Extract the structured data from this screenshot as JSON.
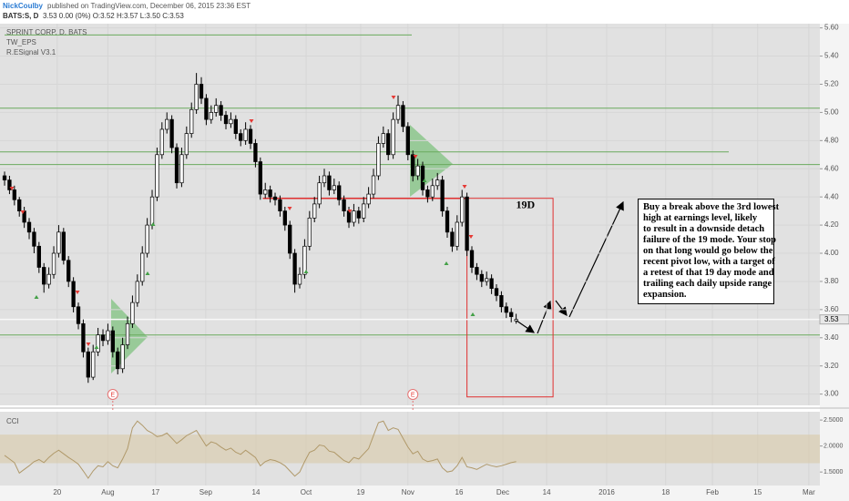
{
  "header": {
    "author": "NickCoulby",
    "published": "published on TradingView.com, December 06, 2015 23:36 EST",
    "symbol": "BATS:S, D",
    "quote": "3.53 0.00 (0%) O:3.52 H:3.57 L:3.50 C:3.53"
  },
  "annotation": {
    "label": "19D",
    "lines": [
      "Buy a break above the 3rd lowest",
      "high at earnings level, likely",
      "to result in a downside detach",
      "failure of the 19 mode. Your stop",
      "on that long would go below the",
      "recent pivot low, with a target of",
      "a retest of that 19 day mode and",
      "trailing each daily upside range",
      "expansion."
    ]
  },
  "chart_data": [
    {
      "type": "candlestick",
      "legend": [
        "SPRINT CORP, D, BATS",
        "TW_EPS",
        "R.ESignal V3.1"
      ],
      "up_color": "#ffffff",
      "down_color": "#000000",
      "grid": true,
      "xlim": [
        -0.93,
        165.74
      ],
      "ylim": [
        2.92,
        5.63
      ],
      "yticks": [
        {
          "value": 3.0,
          "label": "3.00"
        },
        {
          "value": 3.2,
          "label": "3.20"
        },
        {
          "value": 3.4,
          "label": "3.40"
        },
        {
          "value": 3.6,
          "label": "3.60"
        },
        {
          "value": 3.8,
          "label": "3.80"
        },
        {
          "value": 4.0,
          "label": "4.00"
        },
        {
          "value": 4.2,
          "label": "4.20"
        },
        {
          "value": 4.4,
          "label": "4.40"
        },
        {
          "value": 4.6,
          "label": "4.60"
        },
        {
          "value": 4.8,
          "label": "4.80"
        },
        {
          "value": 5.0,
          "label": "5.00"
        },
        {
          "value": 5.2,
          "label": "5.20"
        },
        {
          "value": 5.4,
          "label": "5.40"
        },
        {
          "value": 5.6,
          "label": "5.60"
        }
      ],
      "last_price": 3.53,
      "levels": [
        5.55,
        5.03,
        4.72,
        4.63,
        3.42
      ],
      "level_color": "#6aaa5e",
      "resistance": 4.39,
      "box": {
        "top": 4.39,
        "bottom": 2.98
      },
      "box_color": "#e03030",
      "events": [
        {
          "index": 22,
          "label": "E"
        },
        {
          "index": 83,
          "label": "E"
        }
      ],
      "ohlc": [
        [
          4.55,
          4.58,
          4.48,
          4.52
        ],
        [
          4.52,
          4.55,
          4.42,
          4.45
        ],
        [
          4.45,
          4.48,
          4.34,
          4.38
        ],
        [
          4.38,
          4.4,
          4.26,
          4.3
        ],
        [
          4.3,
          4.33,
          4.18,
          4.22
        ],
        [
          4.22,
          4.25,
          4.1,
          4.15
        ],
        [
          4.15,
          4.18,
          4.0,
          4.05
        ],
        [
          4.05,
          4.08,
          3.86,
          3.9
        ],
        [
          3.9,
          3.93,
          3.72,
          3.78
        ],
        [
          3.78,
          3.9,
          3.75,
          3.85
        ],
        [
          3.85,
          4.05,
          3.82,
          4.0
        ],
        [
          4.0,
          4.2,
          3.97,
          4.15
        ],
        [
          4.15,
          4.18,
          3.92,
          3.95
        ],
        [
          3.95,
          3.98,
          3.76,
          3.8
        ],
        [
          3.8,
          3.83,
          3.58,
          3.62
        ],
        [
          3.62,
          3.65,
          3.46,
          3.5
        ],
        [
          3.5,
          3.53,
          3.26,
          3.3
        ],
        [
          3.3,
          3.33,
          3.08,
          3.12
        ],
        [
          3.12,
          3.35,
          3.1,
          3.3
        ],
        [
          3.3,
          3.47,
          3.27,
          3.42
        ],
        [
          3.42,
          3.46,
          3.34,
          3.38
        ],
        [
          3.38,
          3.5,
          3.35,
          3.45
        ],
        [
          3.45,
          3.48,
          3.26,
          3.3
        ],
        [
          3.3,
          3.33,
          3.14,
          3.18
        ],
        [
          3.18,
          3.4,
          3.15,
          3.35
        ],
        [
          3.35,
          3.55,
          3.32,
          3.5
        ],
        [
          3.5,
          3.7,
          3.47,
          3.65
        ],
        [
          3.65,
          3.85,
          3.62,
          3.8
        ],
        [
          3.8,
          4.05,
          3.77,
          4.0
        ],
        [
          4.0,
          4.25,
          3.97,
          4.2
        ],
        [
          4.2,
          4.45,
          4.17,
          4.4
        ],
        [
          4.4,
          4.75,
          4.37,
          4.7
        ],
        [
          4.7,
          4.93,
          4.67,
          4.88
        ],
        [
          4.88,
          5.0,
          4.85,
          4.95
        ],
        [
          4.95,
          4.98,
          4.71,
          4.75
        ],
        [
          4.75,
          4.78,
          4.46,
          4.5
        ],
        [
          4.5,
          4.75,
          4.47,
          4.7
        ],
        [
          4.7,
          4.9,
          4.67,
          4.85
        ],
        [
          4.85,
          5.07,
          4.82,
          5.02
        ],
        [
          5.02,
          5.28,
          4.99,
          5.2
        ],
        [
          5.2,
          5.25,
          5.06,
          5.1
        ],
        [
          5.1,
          5.13,
          4.91,
          4.95
        ],
        [
          4.95,
          5.05,
          4.92,
          5.0
        ],
        [
          5.0,
          5.1,
          4.97,
          5.05
        ],
        [
          5.05,
          5.08,
          4.94,
          4.98
        ],
        [
          4.98,
          5.01,
          4.88,
          4.92
        ],
        [
          4.92,
          5.0,
          4.89,
          4.95
        ],
        [
          4.95,
          4.98,
          4.81,
          4.85
        ],
        [
          4.85,
          4.88,
          4.76,
          4.8
        ],
        [
          4.8,
          4.93,
          4.77,
          4.88
        ],
        [
          4.88,
          4.91,
          4.74,
          4.78
        ],
        [
          4.78,
          4.81,
          4.61,
          4.65
        ],
        [
          4.65,
          4.68,
          4.38,
          4.42
        ],
        [
          4.42,
          4.5,
          4.39,
          4.45
        ],
        [
          4.45,
          4.48,
          4.36,
          4.4
        ],
        [
          4.4,
          4.43,
          4.34,
          4.38
        ],
        [
          4.38,
          4.41,
          4.26,
          4.3
        ],
        [
          4.3,
          4.33,
          4.16,
          4.2
        ],
        [
          4.2,
          4.23,
          3.96,
          4.0
        ],
        [
          4.0,
          4.03,
          3.72,
          3.78
        ],
        [
          3.78,
          3.9,
          3.75,
          3.85
        ],
        [
          3.85,
          4.1,
          3.82,
          4.05
        ],
        [
          4.05,
          4.3,
          4.02,
          4.25
        ],
        [
          4.25,
          4.4,
          4.22,
          4.35
        ],
        [
          4.35,
          4.55,
          4.32,
          4.5
        ],
        [
          4.5,
          4.6,
          4.47,
          4.55
        ],
        [
          4.55,
          4.58,
          4.41,
          4.45
        ],
        [
          4.45,
          4.53,
          4.42,
          4.48
        ],
        [
          4.48,
          4.51,
          4.34,
          4.38
        ],
        [
          4.38,
          4.41,
          4.26,
          4.3
        ],
        [
          4.3,
          4.33,
          4.18,
          4.22
        ],
        [
          4.22,
          4.35,
          4.19,
          4.3
        ],
        [
          4.3,
          4.33,
          4.21,
          4.25
        ],
        [
          4.25,
          4.4,
          4.22,
          4.35
        ],
        [
          4.35,
          4.47,
          4.32,
          4.42
        ],
        [
          4.42,
          4.6,
          4.39,
          4.55
        ],
        [
          4.55,
          4.83,
          4.52,
          4.78
        ],
        [
          4.78,
          4.9,
          4.75,
          4.85
        ],
        [
          4.85,
          4.88,
          4.66,
          4.7
        ],
        [
          4.7,
          5.0,
          4.67,
          4.95
        ],
        [
          4.95,
          5.12,
          4.92,
          5.05
        ],
        [
          5.05,
          5.08,
          4.86,
          4.9
        ],
        [
          4.9,
          4.93,
          4.66,
          4.7
        ],
        [
          4.7,
          4.73,
          4.51,
          4.55
        ],
        [
          4.55,
          4.67,
          4.52,
          4.62
        ],
        [
          4.62,
          4.65,
          4.41,
          4.45
        ],
        [
          4.45,
          4.48,
          4.36,
          4.4
        ],
        [
          4.4,
          4.53,
          4.37,
          4.48
        ],
        [
          4.48,
          4.57,
          4.45,
          4.52
        ],
        [
          4.52,
          4.55,
          4.26,
          4.3
        ],
        [
          4.3,
          4.33,
          4.11,
          4.15
        ],
        [
          4.15,
          4.18,
          4.01,
          4.05
        ],
        [
          4.05,
          4.27,
          4.02,
          4.22
        ],
        [
          4.22,
          4.45,
          4.19,
          4.4
        ],
        [
          4.4,
          4.43,
          3.98,
          4.02
        ],
        [
          4.02,
          4.05,
          3.86,
          3.9
        ],
        [
          3.9,
          3.93,
          3.81,
          3.85
        ],
        [
          3.85,
          3.88,
          3.76,
          3.8
        ],
        [
          3.8,
          3.87,
          3.77,
          3.82
        ],
        [
          3.82,
          3.85,
          3.71,
          3.75
        ],
        [
          3.75,
          3.78,
          3.66,
          3.7
        ],
        [
          3.7,
          3.73,
          3.58,
          3.62
        ],
        [
          3.62,
          3.65,
          3.54,
          3.58
        ],
        [
          3.58,
          3.61,
          3.51,
          3.55
        ],
        [
          3.52,
          3.57,
          3.5,
          3.53
        ]
      ]
    },
    {
      "type": "line",
      "title": "CCI",
      "color": "#b0996a",
      "band": [
        1.67,
        2.22
      ],
      "band_color": "#d9c9a8",
      "xlim": [
        -0.93,
        165.74
      ],
      "ylim": [
        1.24,
        2.66
      ],
      "yticks": [
        {
          "value": 1.5,
          "label": "1.5000"
        },
        {
          "value": 2.0,
          "label": "2.0000"
        },
        {
          "value": 2.5,
          "label": "2.5000"
        }
      ],
      "xticks": [
        {
          "value": 10.7,
          "label": "20"
        },
        {
          "value": 21,
          "label": "Aug"
        },
        {
          "value": 30.7,
          "label": "17"
        },
        {
          "value": 40.9,
          "label": "Sep"
        },
        {
          "value": 51.1,
          "label": "14"
        },
        {
          "value": 61.3,
          "label": "Oct"
        },
        {
          "value": 72.4,
          "label": "19"
        },
        {
          "value": 82,
          "label": "Nov"
        },
        {
          "value": 92.4,
          "label": "16"
        },
        {
          "value": 101.3,
          "label": "Dec"
        },
        {
          "value": 110.2,
          "label": "14"
        },
        {
          "value": 122.4,
          "label": "2016"
        },
        {
          "value": 134.4,
          "label": "18"
        },
        {
          "value": 143.9,
          "label": "Feb"
        },
        {
          "value": 153.1,
          "label": "15"
        },
        {
          "value": 163.5,
          "label": "Mar"
        }
      ],
      "values": [
        1.82,
        1.75,
        1.68,
        1.48,
        1.55,
        1.62,
        1.7,
        1.74,
        1.68,
        1.78,
        1.86,
        1.92,
        1.85,
        1.78,
        1.72,
        1.65,
        1.52,
        1.38,
        1.52,
        1.62,
        1.6,
        1.7,
        1.62,
        1.58,
        1.75,
        1.95,
        2.35,
        2.48,
        2.4,
        2.3,
        2.25,
        2.18,
        2.2,
        2.25,
        2.15,
        2.05,
        2.12,
        2.2,
        2.25,
        2.3,
        2.15,
        2.0,
        2.08,
        2.05,
        1.98,
        1.92,
        1.96,
        1.88,
        1.84,
        1.92,
        1.85,
        1.78,
        1.62,
        1.7,
        1.74,
        1.72,
        1.68,
        1.62,
        1.52,
        1.42,
        1.5,
        1.7,
        1.88,
        1.92,
        2.02,
        2.0,
        1.9,
        1.88,
        1.8,
        1.72,
        1.68,
        1.78,
        1.75,
        1.85,
        1.95,
        2.2,
        2.45,
        2.48,
        2.3,
        2.35,
        2.32,
        2.15,
        1.98,
        1.85,
        1.9,
        1.75,
        1.7,
        1.72,
        1.75,
        1.58,
        1.5,
        1.52,
        1.62,
        1.78,
        1.6,
        1.58,
        1.55,
        1.6,
        1.65,
        1.62,
        1.6,
        1.62,
        1.65,
        1.68,
        1.7
      ]
    }
  ]
}
